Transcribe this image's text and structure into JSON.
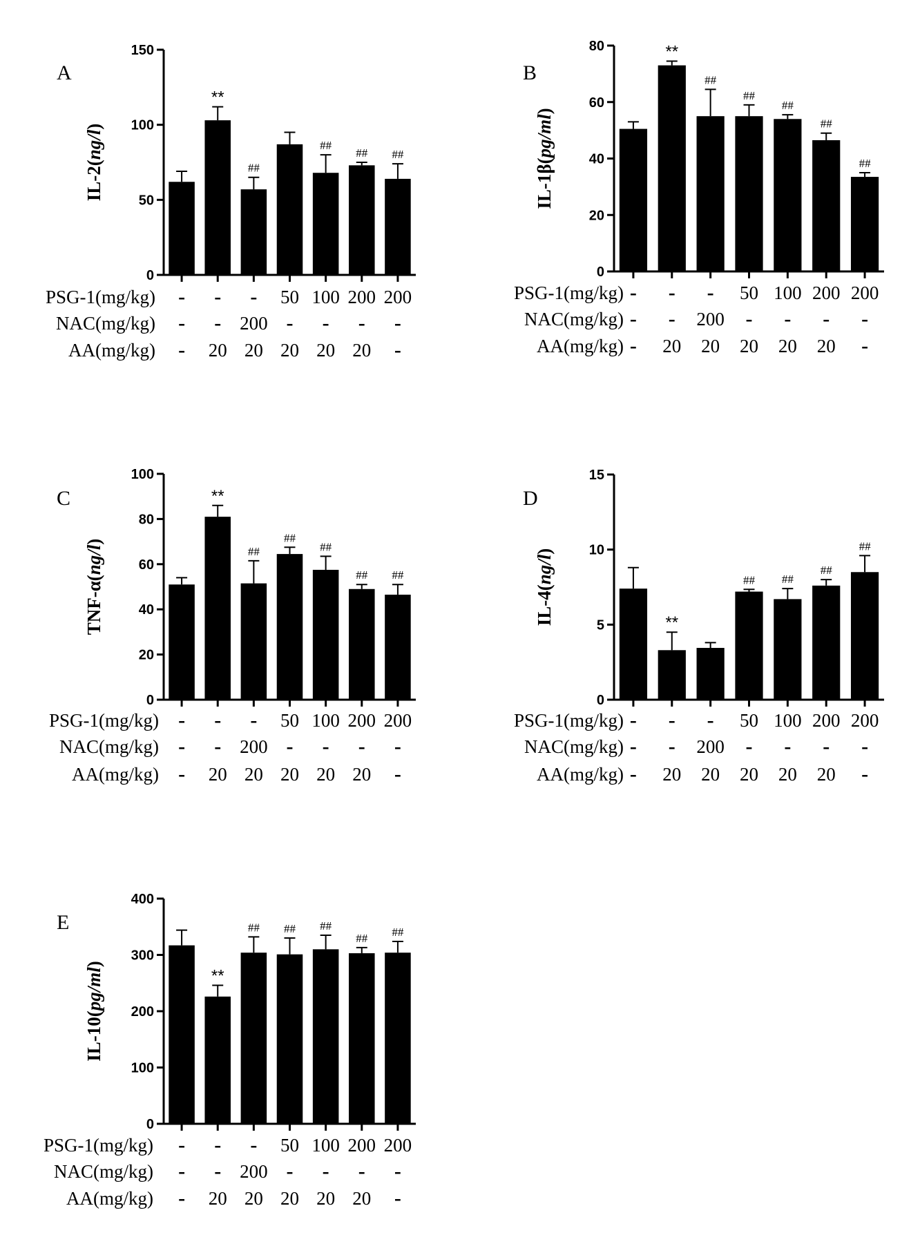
{
  "chart_data": [
    {
      "type": "bar",
      "panel_label": "A",
      "ylabel_base": "IL-2(",
      "ylabel_unit": "ng/l",
      "ylabel_close": ")",
      "ylim": [
        0,
        150
      ],
      "yticks": [
        "0",
        "50",
        "100",
        "150"
      ],
      "values": [
        62,
        103,
        57,
        87,
        68,
        73,
        64
      ],
      "errors": [
        7,
        9,
        8,
        8,
        12,
        2,
        10
      ],
      "annotations": [
        "",
        "**",
        "##",
        "",
        "##",
        "##",
        "##"
      ],
      "rows": [
        {
          "label": "PSG-1(mg/kg)",
          "cells": [
            "-",
            "-",
            "-",
            "50",
            "100",
            "200",
            "200"
          ]
        },
        {
          "label": "NAC(mg/kg)",
          "cells": [
            "-",
            "-",
            "200",
            "-",
            "-",
            "-",
            "-"
          ]
        },
        {
          "label": "AA(mg/kg)",
          "cells": [
            "-",
            "20",
            "20",
            "20",
            "20",
            "20",
            "-"
          ]
        }
      ]
    },
    {
      "type": "bar",
      "panel_label": "B",
      "ylabel_base": "IL-1β(",
      "ylabel_unit": "pg/ml",
      "ylabel_close": ")",
      "ylim": [
        0,
        80
      ],
      "yticks": [
        "0",
        "20",
        "40",
        "60",
        "80"
      ],
      "values": [
        50.5,
        73,
        55,
        55,
        54,
        46.5,
        33.5
      ],
      "errors": [
        2.5,
        1.5,
        9.5,
        4,
        1.5,
        2.5,
        1.5
      ],
      "annotations": [
        "",
        "**",
        "##",
        "##",
        "##",
        "##",
        "##"
      ],
      "rows": [
        {
          "label": "PSG-1(mg/kg)",
          "cells": [
            "-",
            "-",
            "-",
            "50",
            "100",
            "200",
            "200"
          ]
        },
        {
          "label": "NAC(mg/kg)",
          "cells": [
            "-",
            "-",
            "200",
            "-",
            "-",
            "-",
            "-"
          ]
        },
        {
          "label": "AA(mg/kg)",
          "cells": [
            "-",
            "20",
            "20",
            "20",
            "20",
            "20",
            "-"
          ]
        }
      ]
    },
    {
      "type": "bar",
      "panel_label": "C",
      "ylabel_base": "TNF-α(",
      "ylabel_unit": "ng/l",
      "ylabel_close": ")",
      "ylim": [
        0,
        100
      ],
      "yticks": [
        "0",
        "20",
        "40",
        "60",
        "80",
        "100"
      ],
      "values": [
        51,
        81,
        51.5,
        64.5,
        57.5,
        49,
        46.5
      ],
      "errors": [
        3,
        5,
        10,
        3,
        6,
        2,
        4.5
      ],
      "annotations": [
        "",
        "**",
        "##",
        "##",
        "##",
        "##",
        "##"
      ],
      "rows": [
        {
          "label": "PSG-1(mg/kg)",
          "cells": [
            "-",
            "-",
            "-",
            "50",
            "100",
            "200",
            "200"
          ]
        },
        {
          "label": "NAC(mg/kg)",
          "cells": [
            "-",
            "-",
            "200",
            "-",
            "-",
            "-",
            "-"
          ]
        },
        {
          "label": "AA(mg/kg)",
          "cells": [
            "-",
            "20",
            "20",
            "20",
            "20",
            "20",
            "-"
          ]
        }
      ]
    },
    {
      "type": "bar",
      "panel_label": "D",
      "ylabel_base": "IL-4(",
      "ylabel_unit": "ng/l",
      "ylabel_close": ")",
      "ylim": [
        0,
        15
      ],
      "yticks": [
        "0",
        "5",
        "10",
        "15"
      ],
      "values": [
        7.4,
        3.3,
        3.45,
        7.2,
        6.7,
        7.6,
        8.5
      ],
      "errors": [
        1.4,
        1.2,
        0.35,
        0.15,
        0.7,
        0.4,
        1.1
      ],
      "annotations": [
        "",
        "**",
        "",
        "##",
        "##",
        "##",
        "##"
      ],
      "rows": [
        {
          "label": "PSG-1(mg/kg)",
          "cells": [
            "-",
            "-",
            "-",
            "50",
            "100",
            "200",
            "200"
          ]
        },
        {
          "label": "NAC(mg/kg)",
          "cells": [
            "-",
            "-",
            "200",
            "-",
            "-",
            "-",
            "-"
          ]
        },
        {
          "label": "AA(mg/kg)",
          "cells": [
            "-",
            "20",
            "20",
            "20",
            "20",
            "20",
            "-"
          ]
        }
      ]
    },
    {
      "type": "bar",
      "panel_label": "E",
      "ylabel_base": "IL-10(",
      "ylabel_unit": "pg/ml",
      "ylabel_close": ")",
      "ylim": [
        0,
        400
      ],
      "yticks": [
        "0",
        "100",
        "200",
        "300",
        "400"
      ],
      "values": [
        317,
        226,
        304,
        301,
        310,
        303,
        304
      ],
      "errors": [
        27,
        20,
        28,
        29,
        25,
        10,
        20
      ],
      "annotations": [
        "",
        "**",
        "##",
        "##",
        "##",
        "##",
        "##"
      ],
      "rows": [
        {
          "label": "PSG-1(mg/kg)",
          "cells": [
            "-",
            "-",
            "-",
            "50",
            "100",
            "200",
            "200"
          ]
        },
        {
          "label": "NAC(mg/kg)",
          "cells": [
            "-",
            "-",
            "200",
            "-",
            "-",
            "-",
            "-"
          ]
        },
        {
          "label": "AA(mg/kg)",
          "cells": [
            "-",
            "20",
            "20",
            "20",
            "20",
            "20",
            "-"
          ]
        }
      ]
    }
  ]
}
